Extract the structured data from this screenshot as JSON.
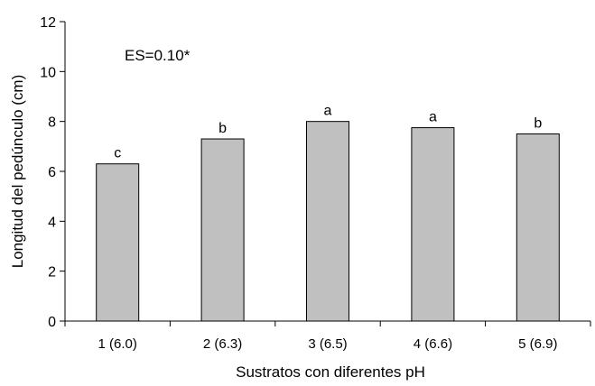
{
  "chart_data": {
    "type": "bar",
    "title": "",
    "annotation": "ES=0.10*",
    "xlabel": "Sustratos con diferentes pH",
    "ylabel": "Longitud del pedúnculo (cm)",
    "categories": [
      "1 (6.0)",
      "2 (6.3)",
      "3 (6.5)",
      "4 (6.6)",
      "5 (6.9)"
    ],
    "values": [
      6.3,
      7.3,
      8.0,
      7.75,
      7.5
    ],
    "bar_labels": [
      "c",
      "b",
      "a",
      "a",
      "b"
    ],
    "ylim": [
      0,
      12
    ],
    "yticks": [
      "0",
      "2",
      "4",
      "6",
      "8",
      "10",
      "12"
    ],
    "grid": false,
    "legend": "none",
    "colors": {
      "bar_fill": "#c0c0c0",
      "bar_stroke": "#000000",
      "axis": "#000000"
    }
  }
}
